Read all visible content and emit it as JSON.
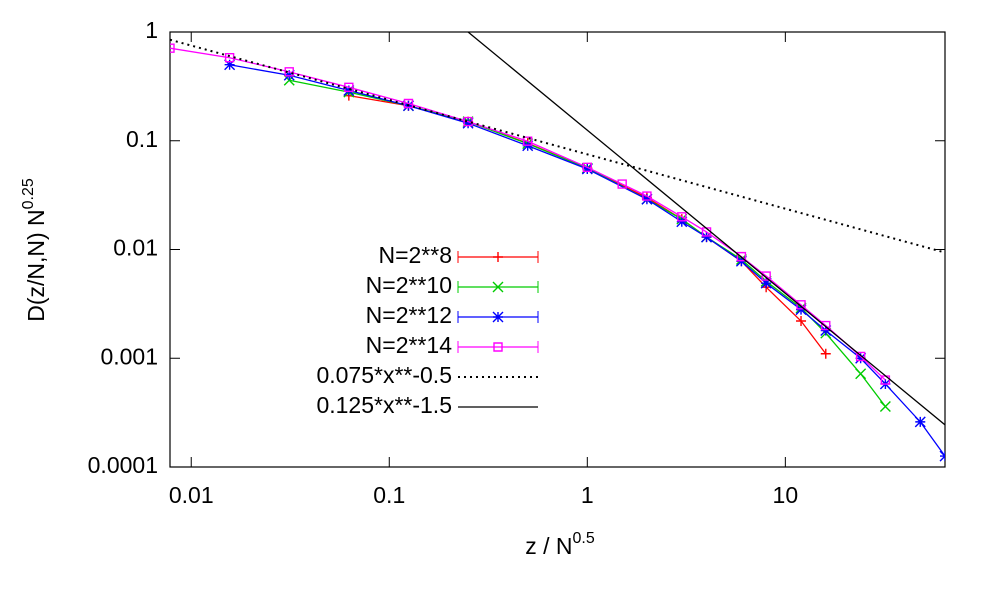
{
  "chart_data": {
    "type": "line",
    "xlabel": {
      "text": "z / N",
      "superscript": "0.5"
    },
    "ylabel": {
      "text": "D(z/N,N) N",
      "superscript": "0.25"
    },
    "log_x": true,
    "log_y": true,
    "xlim": [
      0.0078125,
      64
    ],
    "ylim": [
      0.0001,
      1
    ],
    "xticks": [
      0.01,
      0.1,
      1,
      10
    ],
    "yticks": [
      0.0001,
      0.001,
      0.01,
      0.1,
      1
    ],
    "legend": "center-left",
    "series": [
      {
        "name": "N=2**8",
        "color": "#ff0000",
        "marker": "plus",
        "style": "solid",
        "x": [
          0.0625,
          0.125,
          0.25,
          0.5,
          1,
          2,
          3,
          4,
          6,
          8,
          12,
          16
        ],
        "values": [
          0.26,
          0.21,
          0.15,
          0.095,
          0.056,
          0.03,
          0.019,
          0.013,
          0.0078,
          0.0045,
          0.0022,
          0.0011
        ]
      },
      {
        "name": "N=2**10",
        "color": "#00cc00",
        "marker": "cross",
        "style": "solid",
        "x": [
          0.03125,
          0.0625,
          0.125,
          0.25,
          0.5,
          1,
          2,
          3,
          4,
          6,
          8,
          12,
          16,
          24,
          32
        ],
        "values": [
          0.36,
          0.28,
          0.21,
          0.15,
          0.094,
          0.056,
          0.029,
          0.019,
          0.013,
          0.0081,
          0.0051,
          0.0029,
          0.0017,
          0.00072,
          0.00036
        ]
      },
      {
        "name": "N=2**12",
        "color": "#0000ff",
        "marker": "star",
        "style": "solid",
        "x": [
          0.015625,
          0.03125,
          0.0625,
          0.125,
          0.25,
          0.5,
          1,
          2,
          3,
          4,
          6,
          8,
          12,
          16,
          24,
          32,
          48,
          64
        ],
        "values": [
          0.5,
          0.4,
          0.29,
          0.21,
          0.145,
          0.09,
          0.055,
          0.029,
          0.018,
          0.013,
          0.0078,
          0.0049,
          0.0028,
          0.0018,
          0.001,
          0.00058,
          0.00026,
          0.000126
        ]
      },
      {
        "name": "N=2**14",
        "color": "#ff00ff",
        "marker": "square",
        "style": "solid",
        "x": [
          0.0078125,
          0.015625,
          0.03125,
          0.0625,
          0.125,
          0.25,
          0.5,
          1,
          1.5,
          2,
          3,
          4,
          6,
          8,
          12,
          16,
          24,
          32
        ],
        "values": [
          0.71,
          0.58,
          0.43,
          0.31,
          0.22,
          0.15,
          0.099,
          0.057,
          0.04,
          0.031,
          0.02,
          0.0145,
          0.0086,
          0.0057,
          0.0031,
          0.002,
          0.00104,
          0.00063
        ]
      },
      {
        "name": "0.075*x**-0.5",
        "color": "#000000",
        "marker": "none",
        "style": "dotted",
        "x": [
          0.0078125,
          64
        ],
        "values": [
          0.849,
          0.009375
        ]
      },
      {
        "name": "0.125*x**-1.5",
        "color": "#000000",
        "marker": "none",
        "style": "solid",
        "x": [
          0.25,
          64
        ],
        "values": [
          1.0,
          0.000244
        ]
      }
    ]
  }
}
